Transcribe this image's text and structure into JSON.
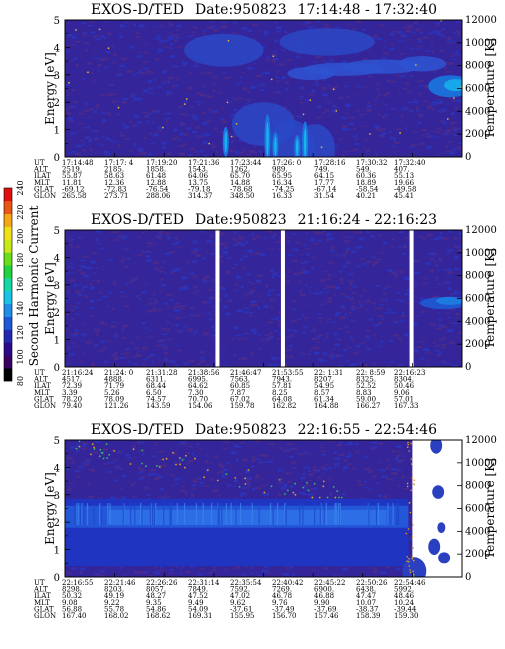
{
  "colorbar": {
    "label": "Second Harmonic Current",
    "ticks": [
      "80",
      "100",
      "120",
      "140",
      "160",
      "180",
      "200",
      "220",
      "240"
    ],
    "colors": [
      "#000000",
      "#3a0060",
      "#2a0a8a",
      "#1f2ab0",
      "#1c58d8",
      "#1f8ee8",
      "#19c4e8",
      "#14d8a8",
      "#20d440",
      "#6ade1a",
      "#c8e818",
      "#f0e018",
      "#f4a816",
      "#ec5614",
      "#e01010"
    ]
  },
  "chart_data": [
    {
      "type": "heatmap",
      "title": "EXOS-D/TED",
      "date": "Date:950823",
      "time_range": "17:14:48 - 17:32:40",
      "ylabel": "Energy [eV]",
      "ylabel_right": "Temperature [K]",
      "ylim": [
        0,
        5
      ],
      "ylim_right": [
        0,
        12000
      ],
      "yticks": [
        "0",
        "1",
        "2",
        "3",
        "4",
        "5"
      ],
      "yticks_right": [
        "0",
        "2000",
        "4000",
        "6000",
        "8000",
        "10000",
        "12000"
      ],
      "table_labels": [
        "UT",
        "ALT",
        "ILAT",
        "MLT",
        "GLAT",
        "GLON"
      ],
      "table": [
        [
          "17:14:48",
          "2519.",
          "55.87",
          "11.81",
          "-69.12",
          "265.58"
        ],
        [
          "17:17: 4",
          "2185.",
          "58.63",
          "12.36",
          "-72.83",
          "273.71"
        ],
        [
          "17:19:20",
          "1858.",
          "61.48",
          "12.88",
          "-76.54",
          "288.06"
        ],
        [
          "17:21:36",
          "1543.",
          "64.06",
          "13.75",
          "-79.18",
          "314.37"
        ],
        [
          "17:23:44",
          "1262.",
          "65.70",
          "14.88",
          "-78.68",
          "348.50"
        ],
        [
          "17:26: 0",
          "989.",
          "65.95",
          "16.34",
          "-74.25",
          "16.33"
        ],
        [
          "17:28:16",
          "749.",
          "64.15",
          "17.77",
          "-67.14",
          "31.54"
        ],
        [
          "17:30:32",
          "549.",
          "60.36",
          "18.89",
          "-58.54",
          "40.21"
        ],
        [
          "17:32:40",
          "407.",
          "55.13",
          "19.66",
          "-49.58",
          "45.41"
        ]
      ]
    },
    {
      "type": "heatmap",
      "title": "EXOS-D/TED",
      "date": "Date:950823",
      "time_range": "21:16:24 - 22:16:23",
      "ylabel": "Energy [eV]",
      "ylabel_right": "Temperature [K]",
      "ylim": [
        0,
        5
      ],
      "ylim_right": [
        0,
        12000
      ],
      "yticks": [
        "0",
        "1",
        "2",
        "3",
        "4",
        "5"
      ],
      "yticks_right": [
        "0",
        "2000",
        "4000",
        "6000",
        "8000",
        "10000",
        "12000"
      ],
      "table_labels": [
        "UT",
        "ALT",
        "ILAT",
        "MLT",
        "GLAT",
        "GLON"
      ],
      "table": [
        [
          "21:16:24",
          "4517.",
          "72.39",
          "3.39",
          "78.20",
          "79.40"
        ],
        [
          "21:24: 0",
          "4888.",
          "71.79",
          "5.26",
          "78.09",
          "121.26"
        ],
        [
          "21:31:28",
          "6311.",
          "68.44",
          "6.50",
          "74.57",
          "143.59"
        ],
        [
          "21:38:56",
          "6995.",
          "64.62",
          "7.30",
          "70.70",
          "154.06"
        ],
        [
          "21:46:47",
          "7563.",
          "60.85",
          "7.87",
          "67.02",
          "159.78"
        ],
        [
          "21:53:55",
          "7943.",
          "57.81",
          "8.25",
          "64.08",
          "162.82"
        ],
        [
          "22: 1:31",
          "8207.",
          "54.95",
          "8.57",
          "61.34",
          "164.88"
        ],
        [
          "22: 8:59",
          "8325.",
          "52.52",
          "8.83",
          "59.00",
          "166.27"
        ],
        [
          "22:16:23",
          "8304.",
          "50.46",
          "9.06",
          "57.01",
          "167.33"
        ]
      ]
    },
    {
      "type": "heatmap",
      "title": "EXOS-D/TED",
      "date": "Date:950823",
      "time_range": "22:16:55 - 22:54:46",
      "ylabel": "Energy [eV]",
      "ylabel_right": "Temperature [K]",
      "ylim": [
        0,
        5
      ],
      "ylim_right": [
        0,
        12000
      ],
      "yticks": [
        "0",
        "1",
        "2",
        "3",
        "4",
        "5"
      ],
      "yticks_right": [
        "0",
        "2000",
        "4000",
        "6000",
        "8000",
        "10000",
        "12000"
      ],
      "table_labels": [
        "UT",
        "ALT",
        "ILAT",
        "MLT",
        "GLAT",
        "GLON"
      ],
      "table": [
        [
          "22:16:55",
          "8298.",
          "50.32",
          "9.08",
          "56.88",
          "167.40"
        ],
        [
          "22:21:46",
          "8203.",
          "49.19",
          "9.22",
          "55.78",
          "168.02"
        ],
        [
          "22:26:26",
          "8057.",
          "48.27",
          "9.35",
          "54.86",
          "168.62"
        ],
        [
          "22:31:14",
          "7849.",
          "47.52",
          "9.49",
          "54.09",
          "169.31"
        ],
        [
          "22:35:54",
          "7592.",
          "47.02",
          "9.62",
          "-37.61",
          "155.95"
        ],
        [
          "22:40:42",
          "7269.",
          "46.78",
          "9.76",
          "-37.49",
          "156.70"
        ],
        [
          "22:45:22",
          "6900.",
          "46.88",
          "9.90",
          "-37.69",
          "157.46"
        ],
        [
          "22:50:26",
          "6438.",
          "47.47",
          "10.07",
          "-38.37",
          "158.39"
        ],
        [
          "22:54:46",
          "5992.",
          "48.46",
          "10.24",
          "-39.44",
          "159.30"
        ]
      ]
    }
  ]
}
